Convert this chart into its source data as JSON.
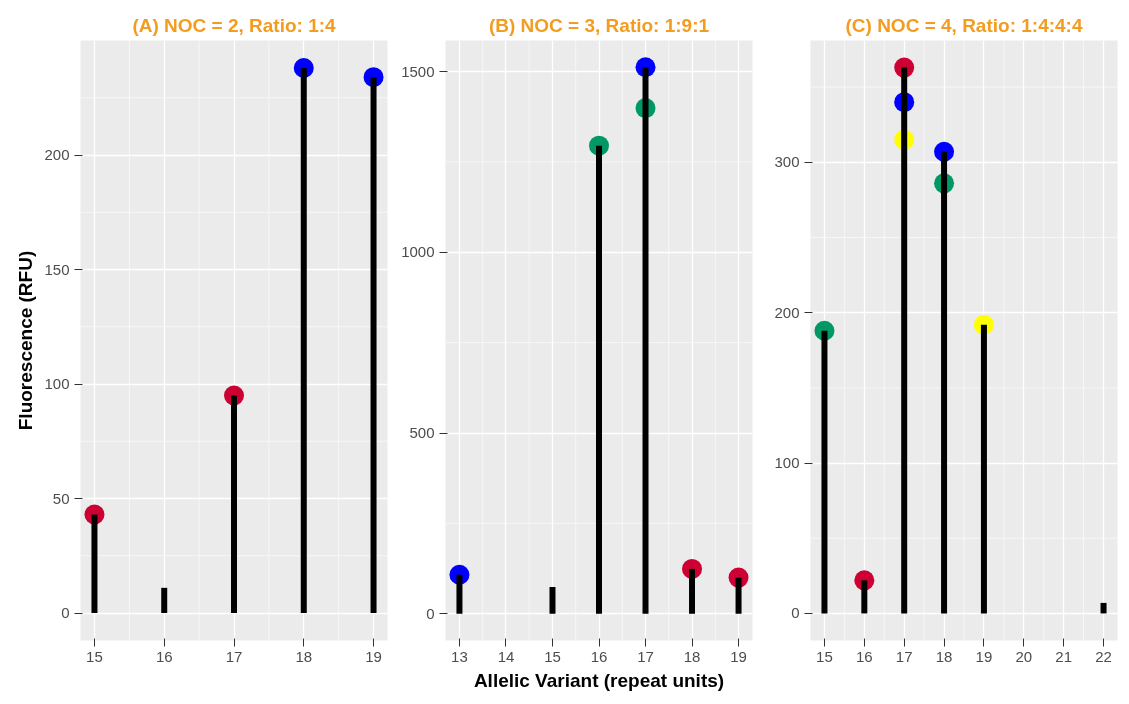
{
  "chart_data": [
    {
      "type": "bar",
      "title": "(A) NOC = 2, Ratio: 1:4",
      "ylabel": "Fluorescence (RFU)",
      "xlim": [
        14.8,
        19.2
      ],
      "ylim": [
        -12,
        250
      ],
      "xticks": [
        15,
        16,
        17,
        18,
        19
      ],
      "yticks": [
        0,
        50,
        100,
        150,
        200
      ],
      "grid": true,
      "marker": "circle",
      "series": [
        {
          "color": "#000000",
          "x": [
            15,
            16,
            17,
            18,
            19
          ],
          "values": [
            43,
            11,
            95,
            238,
            234
          ]
        },
        {
          "type": "scatter",
          "color": "#cc0033",
          "x": [
            15,
            17
          ],
          "values": [
            43,
            95
          ]
        },
        {
          "type": "scatter",
          "color": "#0000ff",
          "x": [
            18,
            19
          ],
          "values": [
            238,
            234
          ]
        }
      ]
    },
    {
      "type": "bar",
      "title": "(B) NOC = 3, Ratio: 1:9:1",
      "xlabel": "Allelic Variant (repeat units)",
      "xlim": [
        12.7,
        19.3
      ],
      "ylim": [
        -74,
        1586
      ],
      "xticks": [
        13,
        14,
        15,
        16,
        17,
        18,
        19
      ],
      "yticks": [
        0,
        500,
        1000,
        1500
      ],
      "grid": true,
      "marker": "circle",
      "series": [
        {
          "color": "#000000",
          "x": [
            13,
            15,
            16,
            17,
            18,
            19
          ],
          "values": [
            108,
            74,
            1295,
            1512,
            124,
            100
          ]
        },
        {
          "type": "scatter",
          "color": "#0000ff",
          "x": [
            13,
            17
          ],
          "values": [
            108,
            1512
          ]
        },
        {
          "type": "scatter",
          "color": "#009966",
          "x": [
            16,
            17
          ],
          "values": [
            1295,
            1399
          ]
        },
        {
          "type": "scatter",
          "color": "#cc0033",
          "x": [
            18,
            19
          ],
          "values": [
            124,
            100
          ]
        }
      ]
    },
    {
      "type": "bar",
      "title": "(C) NOC = 4, Ratio: 1:4:4:4",
      "xlim": [
        14.65,
        22.35
      ],
      "ylim": [
        -18,
        381
      ],
      "xticks": [
        15,
        16,
        17,
        18,
        19,
        20,
        21,
        22
      ],
      "yticks": [
        0,
        100,
        200,
        300
      ],
      "grid": true,
      "marker": "circle",
      "series": [
        {
          "color": "#000000",
          "x": [
            15,
            16,
            17,
            18,
            19,
            22
          ],
          "values": [
            188,
            22,
            363,
            307,
            192,
            7
          ]
        },
        {
          "type": "scatter",
          "color": "#009966",
          "x": [
            15,
            18
          ],
          "values": [
            188,
            286
          ]
        },
        {
          "type": "scatter",
          "color": "#cc0033",
          "x": [
            16,
            17
          ],
          "values": [
            22,
            363
          ]
        },
        {
          "type": "scatter",
          "color": "#0000ff",
          "x": [
            17,
            18
          ],
          "values": [
            340,
            307
          ]
        },
        {
          "type": "scatter",
          "color": "#ffff00",
          "x": [
            17,
            19
          ],
          "values": [
            315,
            192
          ]
        }
      ]
    }
  ]
}
